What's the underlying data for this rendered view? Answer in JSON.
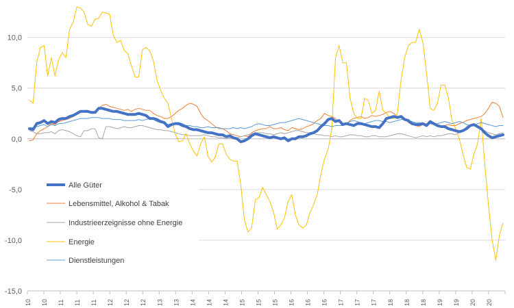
{
  "chart_data": {
    "type": "line",
    "xlabel": "",
    "ylabel": "",
    "ylim": [
      -15,
      12
    ],
    "yticks": [
      -15,
      -10,
      -5,
      0,
      5,
      10
    ],
    "ytick_labels": [
      "-15,0",
      "-10,0",
      "-5,0",
      "0,0",
      "5,0",
      "10,0"
    ],
    "x_year_labels": [
      "10",
      "10",
      "11",
      "11",
      "11",
      "12",
      "12",
      "12",
      "13",
      "13",
      "14",
      "14",
      "14",
      "15",
      "15",
      "15",
      "16",
      "16",
      "16",
      "17",
      "17",
      "17",
      "18",
      "18",
      "18",
      "19",
      "19",
      "20",
      "20"
    ],
    "grid": "horizontal",
    "legend_position": "left-center",
    "series": [
      {
        "name": "Alle Güter",
        "color": "#4472C4",
        "width": 4,
        "values": [
          1.0,
          0.9,
          1.5,
          1.6,
          1.8,
          1.5,
          1.7,
          1.6,
          1.9,
          2.0,
          2.0,
          2.2,
          2.3,
          2.5,
          2.7,
          2.7,
          2.7,
          2.6,
          2.6,
          3.0,
          3.0,
          2.9,
          2.8,
          2.7,
          2.7,
          2.6,
          2.5,
          2.4,
          2.4,
          2.4,
          2.5,
          2.4,
          2.3,
          2.0,
          2.0,
          1.9,
          1.7,
          1.6,
          1.2,
          1.4,
          1.5,
          1.5,
          1.3,
          1.2,
          1.0,
          0.9,
          0.9,
          0.8,
          0.7,
          0.6,
          0.6,
          0.5,
          0.4,
          0.4,
          0.2,
          0.3,
          0.1,
          0.0,
          -0.3,
          -0.2,
          0.0,
          0.3,
          0.5,
          0.4,
          0.3,
          0.2,
          0.1,
          0.2,
          0.1,
          0.0,
          0.1,
          -0.2,
          0.0,
          0.0,
          0.2,
          0.2,
          0.3,
          0.5,
          0.6,
          0.8,
          1.2,
          1.5,
          1.9,
          2.0,
          1.7,
          1.8,
          1.4,
          1.5,
          1.4,
          1.3,
          1.5,
          1.5,
          1.4,
          1.3,
          1.2,
          1.2,
          1.1,
          1.5,
          2.0,
          2.1,
          2.2,
          2.1,
          2.2,
          1.9,
          1.8,
          1.5,
          1.4,
          1.4,
          1.5,
          1.3,
          1.7,
          1.5,
          1.3,
          1.2,
          1.2,
          1.0,
          0.9,
          0.8,
          0.7,
          0.8,
          1.0,
          1.3,
          1.4,
          1.2,
          1.0,
          0.6,
          0.3,
          0.1,
          0.2,
          0.3,
          0.4
        ]
      },
      {
        "name": "Lebensmittel, Alkohol & Tabak",
        "color": "#ED7D31",
        "width": 1,
        "values": [
          -0.2,
          -0.1,
          0.5,
          0.8,
          1.0,
          1.2,
          1.5,
          1.4,
          1.7,
          1.8,
          1.9,
          2.0,
          2.2,
          2.4,
          2.6,
          2.8,
          2.8,
          2.6,
          2.6,
          3.0,
          3.3,
          3.4,
          3.2,
          3.1,
          3.0,
          2.9,
          2.8,
          2.9,
          2.7,
          2.9,
          3.0,
          2.9,
          2.8,
          2.8,
          2.5,
          2.3,
          2.2,
          2.0,
          2.0,
          2.2,
          2.5,
          2.8,
          3.0,
          3.3,
          3.5,
          3.4,
          3.2,
          2.5,
          2.0,
          1.8,
          1.5,
          1.2,
          1.0,
          1.0,
          0.8,
          0.5,
          0.4,
          0.3,
          0.2,
          0.3,
          0.2,
          0.6,
          0.8,
          0.9,
          1.0,
          1.0,
          1.2,
          1.0,
          1.0,
          1.1,
          0.9,
          0.8,
          1.1,
          1.0,
          0.9,
          1.0,
          1.2,
          1.3,
          1.5,
          1.8,
          2.0,
          2.5,
          2.3,
          2.2,
          2.0,
          1.7,
          1.4,
          1.5,
          1.8,
          2.0,
          2.1,
          2.2,
          2.0,
          2.1,
          2.3,
          2.2,
          2.3,
          2.4,
          2.6,
          2.7,
          2.5,
          2.2,
          2.3,
          2.0,
          1.6,
          1.4,
          1.3,
          1.2,
          1.4,
          1.5,
          1.6,
          1.5,
          1.4,
          1.2,
          1.3,
          1.4,
          1.3,
          1.3,
          1.5,
          1.6,
          1.8,
          1.9,
          2.0,
          2.1,
          2.2,
          2.5,
          3.0,
          3.6,
          3.5,
          3.2,
          2.1
        ]
      },
      {
        "name": "Industrieerzeignisse ohne Energie",
        "color": "#A5A5A5",
        "width": 1,
        "values": [
          0.8,
          0.7,
          0.5,
          0.5,
          0.6,
          0.6,
          0.7,
          0.5,
          0.8,
          0.9,
          0.8,
          0.7,
          0.5,
          0.3,
          0.2,
          0.8,
          0.8,
          1.0,
          1.0,
          0.1,
          0.0,
          1.2,
          1.2,
          1.1,
          1.0,
          1.1,
          1.2,
          1.1,
          1.1,
          1.2,
          1.3,
          1.3,
          1.2,
          1.1,
          1.0,
          0.9,
          0.9,
          0.8,
          0.8,
          0.7,
          0.6,
          0.5,
          0.4,
          0.4,
          0.3,
          0.3,
          0.3,
          0.3,
          0.4,
          0.3,
          0.2,
          0.2,
          0.1,
          0.1,
          0.0,
          0.1,
          0.0,
          0.1,
          0.2,
          0.3,
          0.4,
          0.5,
          0.6,
          0.6,
          0.6,
          0.5,
          0.5,
          0.4,
          0.5,
          0.6,
          0.5,
          0.6,
          0.7,
          0.8,
          0.8,
          0.7,
          0.6,
          0.6,
          0.5,
          0.4,
          0.4,
          0.3,
          0.3,
          0.2,
          0.3,
          0.2,
          0.2,
          0.3,
          0.4,
          0.4,
          0.3,
          0.3,
          0.2,
          0.2,
          0.3,
          0.3,
          0.2,
          0.2,
          0.2,
          0.3,
          0.4,
          0.5,
          0.5,
          0.4,
          0.3,
          0.2,
          0.1,
          0.2,
          0.3,
          0.2,
          0.3,
          0.2,
          0.3,
          0.3,
          0.4,
          0.5,
          0.5,
          0.4,
          0.6,
          0.8,
          1.2,
          1.4,
          1.3,
          1.1,
          0.9,
          0.8,
          0.6,
          0.5,
          0.4,
          0.5,
          0.6
        ]
      },
      {
        "name": "Energie",
        "color": "#FFC000",
        "width": 1,
        "values": [
          3.8,
          3.5,
          7.5,
          9.0,
          9.2,
          6.2,
          8.0,
          6.2,
          7.8,
          8.5,
          8.0,
          10.8,
          11.5,
          13.0,
          12.9,
          12.5,
          11.3,
          11.1,
          11.8,
          11.9,
          12.5,
          12.4,
          12.3,
          10.2,
          9.5,
          9.7,
          8.7,
          8.4,
          7.2,
          6.1,
          6.1,
          8.8,
          9.0,
          8.7,
          7.7,
          5.8,
          4.8,
          4.0,
          3.5,
          2.0,
          0.5,
          -0.3,
          -0.2,
          0.5,
          -0.5,
          -1.2,
          -1.7,
          -0.5,
          0.2,
          -1.7,
          -2.3,
          -1.8,
          -0.5,
          -0.5,
          -1.5,
          -2.0,
          -2.2,
          -2.2,
          -4.5,
          -8.0,
          -9.2,
          -8.8,
          -6.0,
          -5.8,
          -4.8,
          -5.5,
          -6.2,
          -7.2,
          -8.9,
          -8.5,
          -7.8,
          -6.2,
          -5.5,
          -7.5,
          -8.5,
          -8.8,
          -8.5,
          -7.3,
          -6.5,
          -5.5,
          -3.5,
          -2.0,
          -1.0,
          1.0,
          8.0,
          9.2,
          7.5,
          7.5,
          4.0,
          2.5,
          2.0,
          2.0,
          4.0,
          3.8,
          2.5,
          2.8,
          4.7,
          2.8,
          2.5,
          2.0,
          2.0,
          2.5,
          5.8,
          8.0,
          9.2,
          9.5,
          9.5,
          10.8,
          9.5,
          6.5,
          3.0,
          2.8,
          3.5,
          5.3,
          5.3,
          4.0,
          1.8,
          1.0,
          0.0,
          -1.5,
          -2.8,
          -3.0,
          -1.5,
          -0.5,
          2.0,
          -2.5,
          -6.5,
          -10.0,
          -12.0,
          -9.5,
          -8.3
        ]
      },
      {
        "name": "Dienstleistungen",
        "color": "#5B9BD5",
        "width": 1,
        "values": [
          1.1,
          1.1,
          1.2,
          1.3,
          1.4,
          1.2,
          1.4,
          1.3,
          1.5,
          1.5,
          1.6,
          1.7,
          1.8,
          1.9,
          2.0,
          2.0,
          2.0,
          2.1,
          2.1,
          2.1,
          2.0,
          2.0,
          2.0,
          1.9,
          1.9,
          1.9,
          1.8,
          1.8,
          1.8,
          1.8,
          1.9,
          1.8,
          1.9,
          2.0,
          1.9,
          1.7,
          1.6,
          1.5,
          1.4,
          1.5,
          1.6,
          1.6,
          1.5,
          1.3,
          1.3,
          1.2,
          1.2,
          1.1,
          1.1,
          1.2,
          1.1,
          1.1,
          1.1,
          1.0,
          1.0,
          1.0,
          1.1,
          1.0,
          1.1,
          1.0,
          1.1,
          1.2,
          1.4,
          1.5,
          1.4,
          1.3,
          1.3,
          1.4,
          1.5,
          1.6,
          1.6,
          1.7,
          1.8,
          1.9,
          2.0,
          1.9,
          1.8,
          1.7,
          1.6,
          1.5,
          1.4,
          1.3,
          1.3,
          1.2,
          1.3,
          1.3,
          1.3,
          1.5,
          1.7,
          1.8,
          1.7,
          1.6,
          1.5,
          1.6,
          1.7,
          1.8,
          1.8,
          1.7,
          1.7,
          1.6,
          1.7,
          1.8,
          1.9,
          1.9,
          1.8,
          1.7,
          1.6,
          1.6,
          1.5,
          1.4,
          1.5,
          1.4,
          1.5,
          1.6,
          1.7,
          1.6,
          1.5,
          1.6,
          1.7,
          1.6,
          1.4,
          1.3,
          1.3,
          1.5,
          1.6,
          1.5,
          1.4,
          1.3,
          1.2,
          1.3,
          1.3
        ]
      }
    ]
  }
}
